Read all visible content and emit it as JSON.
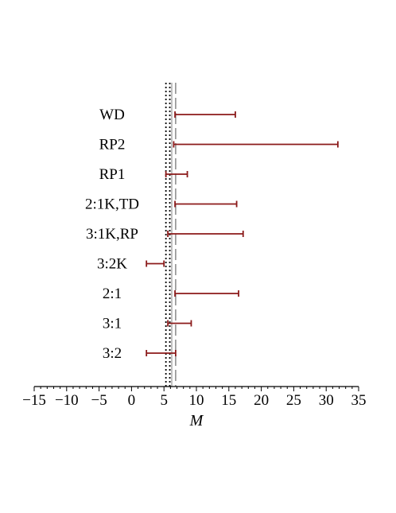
{
  "chart_data": {
    "type": "errorbar",
    "xlabel": "M",
    "xlim": [
      -15,
      35
    ],
    "xticks": [
      -15,
      -10,
      -5,
      0,
      5,
      10,
      15,
      20,
      25,
      30,
      35
    ],
    "xtick_labels": [
      "−15",
      "−10",
      "−5",
      "0",
      "5",
      "10",
      "15",
      "20",
      "25",
      "30",
      "35"
    ],
    "categories": [
      "WD",
      "RP2",
      "RP1",
      "2:1K,TD",
      "3:1K,RP",
      "3:2K",
      "2:1",
      "3:1",
      "3:2"
    ],
    "intervals": [
      {
        "category": "WD",
        "low": 6.7,
        "high": 16.0
      },
      {
        "category": "RP2",
        "low": 6.5,
        "high": 31.8
      },
      {
        "category": "RP1",
        "low": 5.3,
        "high": 8.6
      },
      {
        "category": "2:1K,TD",
        "low": 6.7,
        "high": 16.2
      },
      {
        "category": "3:1K,RP",
        "low": 5.6,
        "high": 17.2
      },
      {
        "category": "3:2K",
        "low": 2.3,
        "high": 5.0
      },
      {
        "category": "2:1",
        "low": 6.7,
        "high": 16.5
      },
      {
        "category": "3:1",
        "low": 5.6,
        "high": 9.2
      },
      {
        "category": "3:2",
        "low": 2.3,
        "high": 6.8
      }
    ],
    "reference_lines": [
      {
        "value": 5.3,
        "style": "dotted",
        "color": "#000000"
      },
      {
        "value": 5.9,
        "style": "dotted",
        "color": "#000000"
      },
      {
        "value": 6.2,
        "style": "solid",
        "color": "#b0b0b0"
      },
      {
        "value": 6.8,
        "style": "dashed",
        "color": "#909090"
      }
    ],
    "series_color": "#8b1a1a",
    "grid": false
  }
}
